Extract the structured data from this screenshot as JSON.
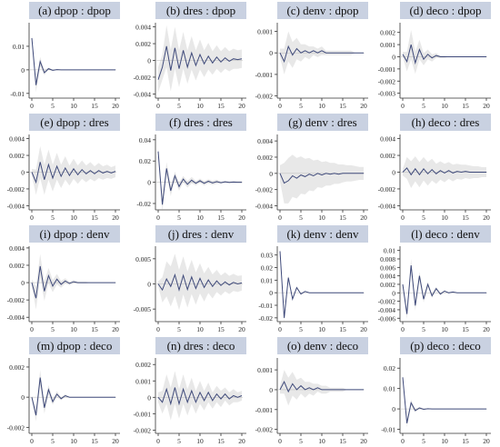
{
  "colors": {
    "title_bg": "#c9d1e1",
    "line": "#3f4a7a",
    "band": "#e8e8e8",
    "axis": "#333333"
  },
  "chart_data": [
    {
      "type": "line",
      "title": "(a) dpop : dpop",
      "x_ticks": [
        0,
        5,
        10,
        15,
        20
      ],
      "y_ticks": [
        {
          "v": 0.01,
          "label": "0.01"
        },
        {
          "v": 0,
          "label": "0"
        },
        {
          "v": -0.01,
          "label": "-0.01"
        }
      ],
      "ylim": [
        -0.012,
        0.02
      ],
      "values": [
        0.0135,
        -0.0065,
        0.0035,
        -0.0012,
        0.0005,
        -0.0002,
        0.0001,
        0,
        0,
        0,
        0,
        0,
        0,
        0,
        0,
        0,
        0,
        0,
        0,
        0,
        0
      ],
      "band": [
        0.001,
        0.003,
        0.002,
        0.001,
        0.0005,
        0.0003,
        0.0002,
        0.0001,
        0,
        0,
        0,
        0,
        0,
        0,
        0,
        0,
        0,
        0,
        0,
        0,
        0
      ]
    },
    {
      "type": "line",
      "title": "(b) dres : dpop",
      "x_ticks": [
        0,
        5,
        10,
        15,
        20
      ],
      "y_ticks": [
        {
          "v": 0.004,
          "label": "0.004"
        },
        {
          "v": 0.002,
          "label": "0.002"
        },
        {
          "v": 0,
          "label": "0"
        },
        {
          "v": -0.002,
          "label": "-0.002"
        },
        {
          "v": -0.004,
          "label": "-0.004"
        }
      ],
      "ylim": [
        -0.0045,
        0.0045
      ],
      "values": [
        -0.0023,
        -0.0008,
        0.0017,
        -0.0012,
        0.0015,
        -0.001,
        0.0012,
        -0.0008,
        0.0009,
        -0.0006,
        0.0007,
        -0.0004,
        0.0005,
        -0.0003,
        0.0004,
        -0.0002,
        0.0003,
        -0.0001,
        0.0002,
        0.0001,
        0.0002
      ],
      "band": [
        0.0015,
        0.0015,
        0.0025,
        0.0025,
        0.0025,
        0.0022,
        0.0022,
        0.002,
        0.002,
        0.0018,
        0.0018,
        0.0016,
        0.0016,
        0.0014,
        0.0014,
        0.0013,
        0.0013,
        0.0012,
        0.0012,
        0.0011,
        0.0011
      ]
    },
    {
      "type": "line",
      "title": "(c) denv : dpop",
      "x_ticks": [
        0,
        5,
        10,
        15,
        20
      ],
      "y_ticks": [
        {
          "v": 0.001,
          "label": "0.001"
        },
        {
          "v": 0,
          "label": "0"
        },
        {
          "v": -0.001,
          "label": "-0.001"
        },
        {
          "v": -0.002,
          "label": "-0.002"
        }
      ],
      "ylim": [
        -0.0021,
        0.0014
      ],
      "values": [
        0,
        -0.0004,
        0.0003,
        -0.0001,
        0.0002,
        0,
        0.0001,
        0,
        0.0001,
        0,
        0.0001,
        0,
        0,
        0,
        0,
        0,
        0,
        0,
        0,
        0,
        0
      ],
      "band": [
        0.0002,
        0.0006,
        0.0007,
        0.0006,
        0.0005,
        0.0004,
        0.0003,
        0.0003,
        0.0002,
        0.0002,
        0.0002,
        0.0001,
        0.0001,
        0.0001,
        0.0001,
        0.0001,
        0.0001,
        0.0001,
        0,
        0,
        0
      ]
    },
    {
      "type": "line",
      "title": "(d) deco : dpop",
      "x_ticks": [
        0,
        5,
        10,
        15,
        20
      ],
      "y_ticks": [
        {
          "v": 0.002,
          "label": "0.002"
        },
        {
          "v": 0.001,
          "label": "0.001"
        },
        {
          "v": 0,
          "label": "0"
        },
        {
          "v": -0.001,
          "label": "-0.001"
        },
        {
          "v": -0.002,
          "label": "-0.002"
        },
        {
          "v": -0.003,
          "label": "-0.003"
        }
      ],
      "ylim": [
        -0.0034,
        0.0028
      ],
      "values": [
        0.0002,
        -0.0004,
        0.001,
        -0.0005,
        0.0006,
        -0.0002,
        0.0002,
        -0.0001,
        0.0001,
        0,
        0,
        0,
        0,
        0,
        0,
        0,
        0,
        0,
        0,
        0,
        0
      ],
      "band": [
        0.0002,
        0.0008,
        0.0012,
        0.0009,
        0.0008,
        0.0005,
        0.0004,
        0.0003,
        0.0002,
        0.0001,
        0.0001,
        0,
        0,
        0,
        0,
        0,
        0,
        0,
        0,
        0,
        0
      ]
    },
    {
      "type": "line",
      "title": "(e) dpop : dres",
      "x_ticks": [
        0,
        5,
        10,
        15,
        20
      ],
      "y_ticks": [
        {
          "v": 0.004,
          "label": "0.004"
        },
        {
          "v": 0.002,
          "label": "0.002"
        },
        {
          "v": 0,
          "label": "0"
        },
        {
          "v": -0.002,
          "label": "-0.002"
        },
        {
          "v": -0.004,
          "label": "-0.004"
        }
      ],
      "ylim": [
        -0.0045,
        0.0045
      ],
      "values": [
        0,
        -0.0012,
        0.0012,
        -0.0009,
        0.0009,
        -0.0007,
        0.0007,
        -0.0005,
        0.0005,
        -0.0004,
        0.0004,
        -0.0003,
        0.0003,
        -0.0002,
        0.0002,
        -0.0002,
        0.0002,
        -0.0001,
        0.0001,
        -0.0001,
        0.0001
      ],
      "band": [
        0.0004,
        0.0015,
        0.0019,
        0.0018,
        0.0018,
        0.0016,
        0.0016,
        0.0014,
        0.0014,
        0.0012,
        0.0012,
        0.0011,
        0.0011,
        0.001,
        0.001,
        0.0009,
        0.0009,
        0.0008,
        0.0008,
        0.0007,
        0.0007
      ]
    },
    {
      "type": "line",
      "title": "(f) dres : dres",
      "x_ticks": [
        0,
        5,
        10,
        15,
        20
      ],
      "y_ticks": [
        {
          "v": 0.04,
          "label": "0.04"
        },
        {
          "v": 0.02,
          "label": "0.02"
        },
        {
          "v": 0,
          "label": "0"
        },
        {
          "v": -0.02,
          "label": "-0.02"
        }
      ],
      "ylim": [
        -0.026,
        0.045
      ],
      "values": [
        0.029,
        -0.021,
        0.013,
        -0.008,
        0.006,
        -0.004,
        0.003,
        -0.002,
        0.002,
        -0.001,
        0.0015,
        -0.001,
        0.001,
        -0.0006,
        0.0006,
        -0.0004,
        0.0004,
        -0.0002,
        0.0002,
        0,
        0
      ],
      "band": [
        0.003,
        0.006,
        0.006,
        0.005,
        0.004,
        0.004,
        0.003,
        0.003,
        0.003,
        0.002,
        0.002,
        0.002,
        0.002,
        0.002,
        0.002,
        0.001,
        0.001,
        0.001,
        0.001,
        0.001,
        0.001
      ]
    },
    {
      "type": "line",
      "title": "(g) denv : dres",
      "x_ticks": [
        0,
        5,
        10,
        15,
        20
      ],
      "y_ticks": [
        {
          "v": 0.004,
          "label": "0.004"
        },
        {
          "v": 0.002,
          "label": "0.002"
        },
        {
          "v": 0,
          "label": "0"
        },
        {
          "v": -0.002,
          "label": "-0.002"
        },
        {
          "v": -0.004,
          "label": "-0.004"
        }
      ],
      "ylim": [
        -0.0045,
        0.0048
      ],
      "values": [
        0,
        -0.0012,
        -0.0009,
        -0.0003,
        -0.0006,
        -0.0002,
        -0.0004,
        -0.0001,
        -0.0003,
        0,
        -0.0002,
        0,
        -0.0001,
        0,
        -0.0001,
        0,
        0,
        0,
        0,
        0,
        0
      ],
      "band": [
        0.001,
        0.0025,
        0.0028,
        0.0026,
        0.0025,
        0.0023,
        0.0022,
        0.002,
        0.0019,
        0.0017,
        0.0016,
        0.0015,
        0.0014,
        0.0013,
        0.0012,
        0.0011,
        0.001,
        0.001,
        0.0009,
        0.0008,
        0.0008
      ]
    },
    {
      "type": "line",
      "title": "(h) deco : dres",
      "x_ticks": [
        0,
        5,
        10,
        15,
        20
      ],
      "y_ticks": [
        {
          "v": 0.004,
          "label": "0.004"
        },
        {
          "v": 0.002,
          "label": "0.002"
        },
        {
          "v": 0,
          "label": "0"
        },
        {
          "v": -0.002,
          "label": "-0.002"
        },
        {
          "v": -0.004,
          "label": "-0.004"
        }
      ],
      "ylim": [
        -0.0045,
        0.0045
      ],
      "values": [
        0,
        0.0005,
        -0.0003,
        0.0004,
        -0.0003,
        0.0004,
        -0.0002,
        0.0003,
        -0.0002,
        0.0002,
        -0.0001,
        0.0002,
        -0.0001,
        0.0001,
        0,
        0.0001,
        0,
        0,
        0,
        0,
        0
      ],
      "band": [
        0.0004,
        0.0013,
        0.0016,
        0.0015,
        0.0015,
        0.0014,
        0.0014,
        0.0013,
        0.0012,
        0.0011,
        0.0011,
        0.001,
        0.001,
        0.0009,
        0.0009,
        0.0008,
        0.0008,
        0.0007,
        0.0007,
        0.0006,
        0.0006
      ]
    },
    {
      "type": "line",
      "title": "(i) dpop : denv",
      "x_ticks": [
        0,
        5,
        10,
        15,
        20
      ],
      "y_ticks": [
        {
          "v": 0.004,
          "label": "0.004"
        },
        {
          "v": 0.002,
          "label": "0.002"
        },
        {
          "v": 0,
          "label": "0"
        },
        {
          "v": -0.002,
          "label": "-0.002"
        },
        {
          "v": -0.004,
          "label": "-0.004"
        }
      ],
      "ylim": [
        -0.0045,
        0.0042
      ],
      "values": [
        0,
        -0.0018,
        0.0019,
        -0.001,
        0.0008,
        -0.0004,
        0.0004,
        -0.0002,
        0.0002,
        -0.0001,
        0.0001,
        0,
        0,
        0,
        0,
        0,
        0,
        0,
        0,
        0,
        0
      ],
      "band": [
        0.0004,
        0.0013,
        0.0014,
        0.0011,
        0.0009,
        0.0007,
        0.0006,
        0.0004,
        0.0003,
        0.0002,
        0.0002,
        0.0001,
        0.0001,
        0.0001,
        0,
        0,
        0,
        0,
        0,
        0,
        0
      ]
    },
    {
      "type": "line",
      "title": "(j) dres : denv",
      "x_ticks": [
        0,
        5,
        10,
        15,
        20
      ],
      "y_ticks": [
        {
          "v": 0.005,
          "label": "0.005"
        },
        {
          "v": 0,
          "label": "0"
        },
        {
          "v": -0.005,
          "label": "-0.005"
        }
      ],
      "ylim": [
        -0.0075,
        0.0075
      ],
      "values": [
        0,
        -0.0012,
        0.001,
        -0.0005,
        0.0018,
        -0.0012,
        0.0017,
        -0.0011,
        0.0014,
        -0.0009,
        0.0011,
        -0.0007,
        0.0008,
        -0.0005,
        0.0006,
        -0.0003,
        0.0004,
        -0.0002,
        0.0003,
        0,
        0.0002
      ],
      "band": [
        0.0005,
        0.0025,
        0.0035,
        0.004,
        0.0042,
        0.004,
        0.0038,
        0.0036,
        0.0034,
        0.0032,
        0.003,
        0.0028,
        0.0026,
        0.0024,
        0.0022,
        0.002,
        0.0019,
        0.0018,
        0.0017,
        0.0016,
        0.0015
      ]
    },
    {
      "type": "line",
      "title": "(k) denv : denv",
      "x_ticks": [
        0,
        5,
        10,
        15,
        20
      ],
      "y_ticks": [
        {
          "v": 0.03,
          "label": "0.03"
        },
        {
          "v": 0.02,
          "label": "0.02"
        },
        {
          "v": 0.01,
          "label": "0.01"
        },
        {
          "v": 0,
          "label": "0"
        },
        {
          "v": -0.01,
          "label": "-0.01"
        },
        {
          "v": -0.02,
          "label": "-0.02"
        }
      ],
      "ylim": [
        -0.023,
        0.037
      ],
      "values": [
        0.033,
        -0.02,
        0.012,
        -0.005,
        0.004,
        -0.001,
        0.001,
        0,
        0,
        0,
        0,
        0,
        0,
        0,
        0,
        0,
        0,
        0,
        0,
        0,
        0
      ],
      "band": [
        0.002,
        0.003,
        0.002,
        0.001,
        0.001,
        0.001,
        0,
        0,
        0,
        0,
        0,
        0,
        0,
        0,
        0,
        0,
        0,
        0,
        0,
        0,
        0
      ]
    },
    {
      "type": "line",
      "title": "(l) deco : denv",
      "x_ticks": [
        0,
        5,
        10,
        15,
        20
      ],
      "y_ticks": [
        {
          "v": 0.01,
          "label": "0.01"
        },
        {
          "v": 0.008,
          "label": "0.008"
        },
        {
          "v": 0.006,
          "label": "0.006"
        },
        {
          "v": 0.004,
          "label": "0.004"
        },
        {
          "v": 0.002,
          "label": "0.002"
        },
        {
          "v": 0,
          "label": "0"
        },
        {
          "v": -0.002,
          "label": "-0.002"
        },
        {
          "v": -0.004,
          "label": "-0.004"
        },
        {
          "v": -0.006,
          "label": "-0.006"
        }
      ],
      "ylim": [
        -0.0068,
        0.011
      ],
      "values": [
        0.002,
        -0.005,
        0.0065,
        -0.003,
        0.004,
        -0.0015,
        0.002,
        -0.0007,
        0.001,
        -0.0003,
        0.0004,
        0,
        0.0002,
        0,
        0,
        0,
        0,
        0,
        0,
        0,
        0
      ],
      "band": [
        0.0005,
        0.0012,
        0.0015,
        0.0012,
        0.001,
        0.0008,
        0.0006,
        0.0005,
        0.0004,
        0.0003,
        0.0002,
        0.0001,
        0.0001,
        0,
        0,
        0,
        0,
        0,
        0,
        0,
        0
      ]
    },
    {
      "type": "line",
      "title": "(m) dpop : deco",
      "x_ticks": [
        0,
        5,
        10,
        15,
        20
      ],
      "y_ticks": [
        {
          "v": 0.002,
          "label": "0.002"
        },
        {
          "v": 0,
          "label": "0"
        },
        {
          "v": -0.002,
          "label": "-0.002"
        }
      ],
      "ylim": [
        -0.0024,
        0.0026
      ],
      "values": [
        0,
        -0.0012,
        0.0013,
        -0.0007,
        0.0005,
        -0.0003,
        0.0002,
        -0.0001,
        0.0001,
        0,
        0,
        0,
        0,
        0,
        0,
        0,
        0,
        0,
        0,
        0,
        0
      ],
      "band": [
        0.0001,
        0.0004,
        0.0005,
        0.0004,
        0.0003,
        0.0002,
        0.0002,
        0.0001,
        0.0001,
        0,
        0,
        0,
        0,
        0,
        0,
        0,
        0,
        0,
        0,
        0,
        0
      ]
    },
    {
      "type": "line",
      "title": "(n) dres : deco",
      "x_ticks": [
        0,
        5,
        10,
        15,
        20
      ],
      "y_ticks": [
        {
          "v": 0.002,
          "label": "0.002"
        },
        {
          "v": 0.001,
          "label": "0.001"
        },
        {
          "v": 0,
          "label": "0"
        },
        {
          "v": -0.001,
          "label": "-0.001"
        },
        {
          "v": -0.002,
          "label": "-0.002"
        }
      ],
      "ylim": [
        -0.0022,
        0.0024
      ],
      "values": [
        0,
        -0.0003,
        0.0005,
        -0.0004,
        0.0006,
        -0.0004,
        0.0005,
        -0.0003,
        0.0004,
        -0.0003,
        0.0003,
        -0.0002,
        0.0003,
        -0.0002,
        0.0002,
        -0.0001,
        0.0002,
        -0.0001,
        0.0001,
        0,
        0.0001
      ],
      "band": [
        0.0003,
        0.0007,
        0.0009,
        0.001,
        0.001,
        0.0009,
        0.0009,
        0.0008,
        0.0008,
        0.0007,
        0.0007,
        0.0006,
        0.0006,
        0.0005,
        0.0005,
        0.0005,
        0.0004,
        0.0004,
        0.0004,
        0.0003,
        0.0003
      ]
    },
    {
      "type": "line",
      "title": "(o) denv : deco",
      "x_ticks": [
        0,
        5,
        10,
        15,
        20
      ],
      "y_ticks": [
        {
          "v": 0.001,
          "label": "0.001"
        },
        {
          "v": 0,
          "label": "0"
        },
        {
          "v": -0.001,
          "label": "-0.001"
        },
        {
          "v": -0.002,
          "label": "-0.002"
        }
      ],
      "ylim": [
        -0.0022,
        0.0016
      ],
      "values": [
        0,
        0.0004,
        -0.0001,
        0.0003,
        0,
        0.0002,
        0,
        0.0001,
        0,
        0.0001,
        0,
        0,
        0,
        0,
        0,
        0,
        0,
        0,
        0,
        0,
        0
      ],
      "band": [
        0.0002,
        0.0006,
        0.0007,
        0.0006,
        0.0005,
        0.0004,
        0.0004,
        0.0003,
        0.0003,
        0.0002,
        0.0002,
        0.0002,
        0.0001,
        0.0001,
        0.0001,
        0.0001,
        0,
        0,
        0,
        0,
        0
      ]
    },
    {
      "type": "line",
      "title": "(p) deco : deco",
      "x_ticks": [
        0,
        5,
        10,
        15,
        20
      ],
      "y_ticks": [
        {
          "v": 0.02,
          "label": "0.02"
        },
        {
          "v": 0.01,
          "label": "0.01"
        },
        {
          "v": 0,
          "label": "0"
        },
        {
          "v": -0.01,
          "label": "-0.01"
        }
      ],
      "ylim": [
        -0.012,
        0.025
      ],
      "values": [
        0.0155,
        -0.007,
        0.003,
        -0.0008,
        0.0005,
        -0.0002,
        0.0001,
        0,
        0,
        0,
        0,
        0,
        0,
        0,
        0,
        0,
        0,
        0,
        0,
        0,
        0
      ],
      "band": [
        0.001,
        0.002,
        0.0015,
        0.0008,
        0.0005,
        0.0003,
        0.0002,
        0.0001,
        0,
        0,
        0,
        0,
        0,
        0,
        0,
        0,
        0,
        0,
        0,
        0,
        0
      ]
    }
  ]
}
